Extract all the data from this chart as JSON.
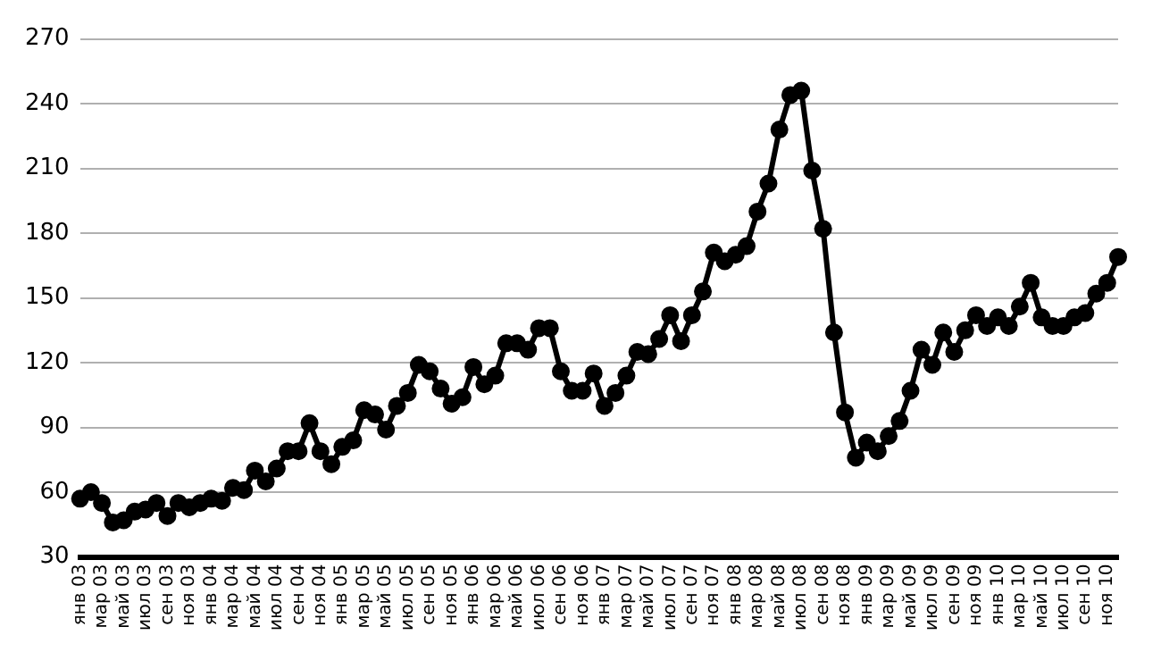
{
  "chart_data": {
    "type": "line",
    "categories": [
      "янв 03",
      null,
      "мар 03",
      null,
      "май 03",
      null,
      "июл 03",
      null,
      "сен 03",
      null,
      "ноя 03",
      null,
      "янв 04",
      null,
      "мар 04",
      null,
      "май 04",
      null,
      "июл 04",
      null,
      "сен 04",
      null,
      "ноя 04",
      null,
      "янв 05",
      null,
      "мар 05",
      null,
      "май 05",
      null,
      "июл 05",
      null,
      "сен 05",
      null,
      "ноя 05",
      null,
      "янв 06",
      null,
      "мар 06",
      null,
      "май 06",
      null,
      "июл 06",
      null,
      "сен 06",
      null,
      "ноя 06",
      null,
      "янв 07",
      null,
      "мар 07",
      null,
      "май 07",
      null,
      "июл 07",
      null,
      "сен 07",
      null,
      "ноя 07",
      null,
      "янв 08",
      null,
      "мар 08",
      null,
      "май 08",
      null,
      "июл 08",
      null,
      "сен 08",
      null,
      "ноя 08",
      null,
      "янв 09",
      null,
      "мар 09",
      null,
      "май 09",
      null,
      "июл 09",
      null,
      "сен 09",
      null,
      "ноя 09",
      null,
      "янв 10",
      null,
      "мар 10",
      null,
      "май 10",
      null,
      "июл 10",
      null,
      "сен 10",
      null,
      "ноя 10",
      null
    ],
    "series": [
      {
        "color": "#000000",
        "values": [
          57,
          60,
          55,
          46,
          47,
          51,
          52,
          55,
          49,
          55,
          53,
          55,
          57,
          56,
          62,
          61,
          70,
          65,
          71,
          79,
          79,
          92,
          79,
          73,
          81,
          84,
          98,
          96,
          89,
          100,
          106,
          119,
          116,
          108,
          101,
          104,
          118,
          110,
          114,
          129,
          129,
          126,
          136,
          136,
          116,
          107,
          107,
          115,
          100,
          106,
          114,
          125,
          124,
          131,
          142,
          130,
          142,
          153,
          171,
          167,
          170,
          174,
          190,
          203,
          228,
          244,
          246,
          209,
          182,
          134,
          97,
          76,
          83,
          79,
          86,
          93,
          107,
          126,
          119,
          134,
          125,
          135,
          142,
          137,
          141,
          137,
          146,
          157,
          141,
          137,
          137,
          141,
          143,
          152,
          157,
          169
        ]
      }
    ],
    "ylim": [
      30,
      270
    ],
    "yticks": [
      30,
      60,
      90,
      120,
      150,
      180,
      210,
      240,
      270
    ],
    "grid": "y",
    "legend": false,
    "marker": "circle",
    "line_style": "solid"
  }
}
